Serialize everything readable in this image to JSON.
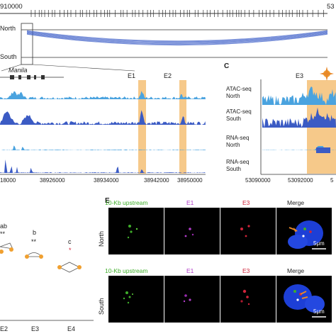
{
  "genome_track": {
    "start_coord": "910000",
    "end_coord_fragment": "53",
    "rows": [
      "North",
      "South"
    ]
  },
  "panel_b": {
    "gene": "Manila",
    "enhancers": [
      "E1",
      "E2"
    ],
    "x_ticks": [
      "18000",
      "38926000",
      "38934000",
      "38942000",
      "38950000"
    ]
  },
  "panel_c": {
    "letter": "C",
    "enhancer": "E3",
    "tracks": [
      "ATAC-seq\nNorth",
      "ATAC-seq\nSouth",
      "RNA-seq\nNorth",
      "RNA-seq\nSouth"
    ],
    "x_ticks": [
      "53090000",
      "53092000",
      "5"
    ]
  },
  "panel_d": {
    "letters": [
      "ab",
      "b",
      "c"
    ],
    "stars": [
      "**",
      "**",
      "*"
    ],
    "x_labels": [
      "E2",
      "E3",
      "E4"
    ]
  },
  "panel_e": {
    "letter": "E",
    "columns": [
      "10-Kb upstream",
      "E1",
      "E3",
      "Merge"
    ],
    "rows": [
      "North",
      "South"
    ],
    "scale_bar": "5μm"
  },
  "colors": {
    "highlight": "#f6c98a",
    "atac_light": "#4aa3df",
    "atac_dark": "#3b5bc4",
    "arc": "#3d5fc8",
    "green": "#3fae2a",
    "magenta": "#b03cc8",
    "red": "#d0243a",
    "orange": "#e8892a"
  }
}
